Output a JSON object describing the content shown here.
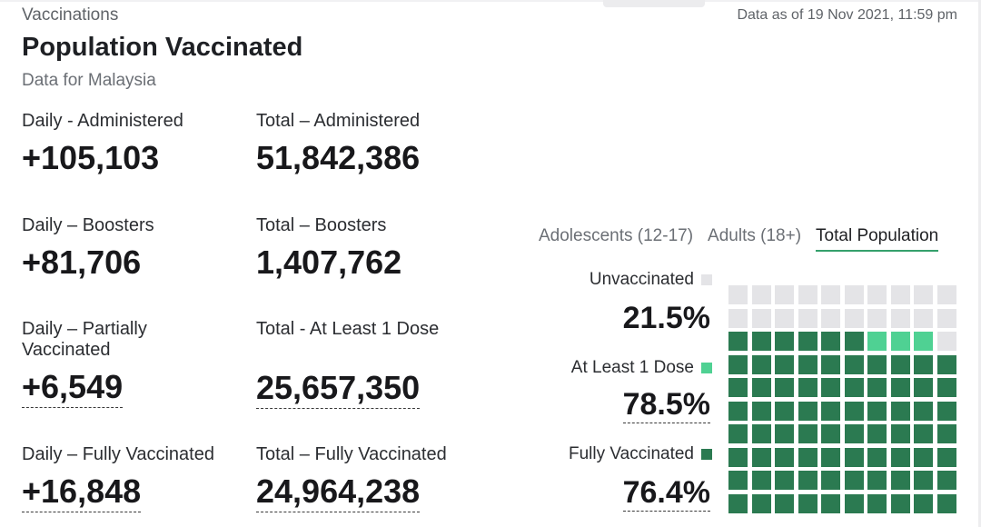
{
  "header": {
    "section": "Vaccinations",
    "as_of": "Data as of 19 Nov 2021, 11:59 pm",
    "title": "Population Vaccinated",
    "subtitle": "Data for Malaysia"
  },
  "stats": {
    "daily_administered": {
      "label": "Daily - Administered",
      "value": "+105,103"
    },
    "total_administered": {
      "label": "Total – Administered",
      "value": "51,842,386"
    },
    "daily_boosters": {
      "label": "Daily – Boosters",
      "value": "+81,706"
    },
    "total_boosters": {
      "label": "Total – Boosters",
      "value": "1,407,762"
    },
    "daily_partial": {
      "label_line1": "Daily – Partially",
      "label_line2": "Vaccinated",
      "value": "+6,549"
    },
    "total_one_dose": {
      "label": "Total - At Least 1 Dose",
      "value": "25,657,350"
    },
    "daily_full": {
      "label": "Daily – Fully Vaccinated",
      "value": "+16,848"
    },
    "total_full": {
      "label": "Total – Fully Vaccinated",
      "value": "24,964,238"
    }
  },
  "tabs": [
    {
      "label": "Adolescents (12-17)",
      "active": false
    },
    {
      "label": "Adults (18+)",
      "active": false
    },
    {
      "label": "Total Population",
      "active": true
    }
  ],
  "waffle": {
    "unvaccinated": {
      "label": "Unvaccinated",
      "pct": "21.5%",
      "color": "#e4e4e7",
      "value": 21.5
    },
    "one_dose": {
      "label": "At Least 1 Dose",
      "pct": "78.5%",
      "color": "#4fd193",
      "value": 78.5
    },
    "fully": {
      "label": "Fully Vaccinated",
      "pct": "76.4%",
      "color": "#2b7a51",
      "value": 76.4
    }
  }
}
